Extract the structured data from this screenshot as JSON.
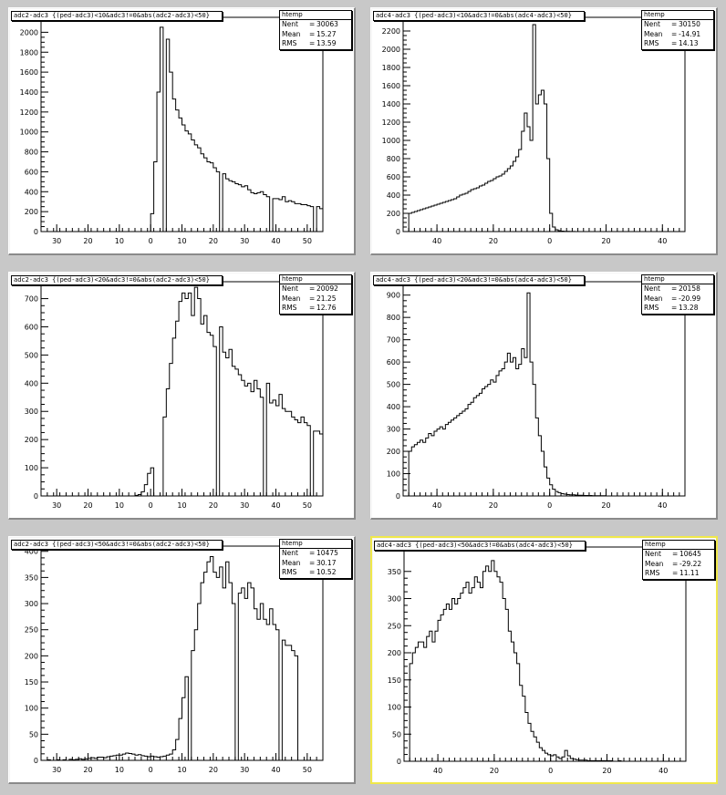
{
  "chart_data": [
    {
      "type": "bar",
      "title": "adc2-adc3 {(ped-adc3)<10&adc3!=0&abs(adc2-adc3)<50}",
      "stats": {
        "header": "htemp",
        "nent": "30063",
        "mean": "15.27",
        "rms": "13.59"
      },
      "xticks": [
        "30",
        "20",
        "10",
        "0",
        "10",
        "20",
        "30",
        "40",
        "50"
      ],
      "xrange": [
        -35,
        55
      ],
      "xtick_values": [
        -30,
        -20,
        -10,
        0,
        10,
        20,
        30,
        40,
        50
      ],
      "yticks": [
        0,
        200,
        400,
        600,
        800,
        1000,
        1200,
        1400,
        1600,
        1800,
        2000
      ],
      "ylim": [
        0,
        2150
      ],
      "bin_start": -50,
      "bin_width": 1,
      "values": [
        0,
        0,
        0,
        0,
        0,
        0,
        0,
        0,
        0,
        0,
        0,
        0,
        0,
        0,
        0,
        0,
        0,
        0,
        0,
        0,
        0,
        0,
        0,
        0,
        0,
        0,
        0,
        0,
        0,
        0,
        0,
        0,
        0,
        0,
        0,
        0,
        0,
        0,
        0,
        0,
        0,
        0,
        0,
        0,
        0,
        0,
        0,
        0,
        0,
        0,
        180,
        700,
        1400,
        2050,
        0,
        1930,
        1600,
        1330,
        1220,
        1140,
        1070,
        1010,
        980,
        920,
        870,
        840,
        780,
        740,
        700,
        690,
        640,
        600,
        0,
        580,
        530,
        510,
        500,
        480,
        470,
        450,
        460,
        420,
        390,
        380,
        390,
        400,
        370,
        350,
        0,
        330,
        330,
        320,
        350,
        300,
        310,
        300,
        280,
        280,
        270,
        270,
        260,
        250,
        0,
        250,
        230,
        220,
        220,
        200,
        190
      ]
    },
    {
      "type": "bar",
      "title": "adc4-adc3 {(ped-adc3)<10&adc3!=0&abs(adc4-adc3)<50}",
      "stats": {
        "header": "htemp",
        "nent": "30150",
        "mean": "-14.91",
        "rms": "14.13"
      },
      "xticks": [
        "40",
        "20",
        "0",
        "20",
        "40"
      ],
      "xrange": [
        -52,
        48
      ],
      "xtick_values": [
        -40,
        -20,
        0,
        20,
        40
      ],
      "yticks": [
        0,
        200,
        400,
        600,
        800,
        1000,
        1200,
        1400,
        1600,
        1800,
        2000,
        2200
      ],
      "ylim": [
        0,
        2350
      ],
      "bin_start": -50,
      "bin_width": 1,
      "values": [
        200,
        210,
        220,
        230,
        240,
        250,
        260,
        270,
        280,
        290,
        300,
        310,
        320,
        330,
        340,
        350,
        360,
        380,
        400,
        410,
        420,
        440,
        460,
        470,
        480,
        500,
        510,
        530,
        550,
        560,
        580,
        600,
        610,
        630,
        660,
        690,
        720,
        770,
        820,
        900,
        1100,
        1300,
        1150,
        1000,
        2270,
        1400,
        1500,
        1550,
        1400,
        800,
        200,
        50,
        20,
        10,
        5,
        3,
        2,
        1,
        1,
        0,
        0,
        0,
        0,
        0,
        0,
        0,
        0,
        0,
        0,
        0,
        0,
        0,
        0,
        0,
        0,
        0,
        0,
        0,
        0,
        0,
        0,
        0,
        0,
        0,
        0,
        0,
        0,
        0,
        0,
        0,
        0,
        0,
        0,
        0,
        0,
        0,
        0,
        0,
        0,
        0
      ]
    },
    {
      "type": "bar",
      "title": "adc2-adc3 {(ped-adc3)<20&adc3!=0&abs(adc2-adc3)<50}",
      "stats": {
        "header": "htemp",
        "nent": "20092",
        "mean": "21.25",
        "rms": "12.76"
      },
      "xticks": [
        "30",
        "20",
        "10",
        "0",
        "10",
        "20",
        "30",
        "40",
        "50"
      ],
      "xrange": [
        -35,
        55
      ],
      "xtick_values": [
        -30,
        -20,
        -10,
        0,
        10,
        20,
        30,
        40,
        50
      ],
      "yticks": [
        0,
        100,
        200,
        300,
        400,
        500,
        600,
        700
      ],
      "ylim": [
        0,
        760
      ],
      "bin_start": -50,
      "bin_width": 1,
      "values": [
        0,
        0,
        0,
        0,
        0,
        0,
        0,
        0,
        0,
        0,
        0,
        0,
        0,
        0,
        0,
        0,
        0,
        0,
        0,
        0,
        0,
        0,
        0,
        0,
        0,
        0,
        0,
        0,
        0,
        0,
        0,
        0,
        0,
        0,
        0,
        0,
        0,
        0,
        0,
        0,
        0,
        0,
        0,
        0,
        0,
        2,
        5,
        15,
        40,
        80,
        100,
        0,
        0,
        0,
        280,
        380,
        470,
        560,
        620,
        690,
        720,
        700,
        720,
        640,
        740,
        700,
        610,
        640,
        580,
        570,
        530,
        0,
        600,
        510,
        490,
        520,
        460,
        450,
        430,
        410,
        390,
        400,
        370,
        410,
        380,
        350,
        0,
        400,
        330,
        340,
        320,
        360,
        310,
        300,
        300,
        280,
        270,
        260,
        280,
        260,
        250,
        0,
        230,
        230,
        220,
        220,
        210,
        200,
        0
      ]
    },
    {
      "type": "bar",
      "title": "adc4-adc3 {(ped-adc3)<20&adc3!=0&abs(adc4-adc3)<50}",
      "stats": {
        "header": "htemp",
        "nent": "20158",
        "mean": "-20.99",
        "rms": "13.28"
      },
      "xticks": [
        "40",
        "20",
        "0",
        "20",
        "40"
      ],
      "xrange": [
        -52,
        48
      ],
      "xtick_values": [
        -40,
        -20,
        0,
        20,
        40
      ],
      "yticks": [
        0,
        100,
        200,
        300,
        400,
        500,
        600,
        700,
        800,
        900
      ],
      "ylim": [
        0,
        960
      ],
      "bin_start": -50,
      "bin_width": 1,
      "values": [
        200,
        220,
        230,
        240,
        250,
        240,
        260,
        280,
        270,
        290,
        300,
        310,
        300,
        320,
        330,
        340,
        350,
        360,
        370,
        380,
        390,
        410,
        420,
        440,
        450,
        460,
        480,
        490,
        500,
        520,
        510,
        540,
        560,
        570,
        600,
        640,
        600,
        620,
        570,
        590,
        660,
        620,
        910,
        600,
        500,
        350,
        270,
        200,
        130,
        80,
        50,
        30,
        20,
        15,
        10,
        8,
        6,
        5,
        5,
        4,
        3,
        3,
        2,
        2,
        2,
        1,
        1,
        1,
        1,
        1,
        0,
        0,
        0,
        0,
        0,
        0,
        0,
        0,
        0,
        0,
        0,
        0,
        0,
        0,
        0,
        0,
        0,
        0,
        0,
        0,
        0,
        0,
        0,
        0,
        0,
        0,
        0,
        0,
        0,
        0
      ]
    },
    {
      "type": "bar",
      "title": "adc2-adc3 {(ped-adc3)<50&adc3!=0&abs(adc2-adc3)<50}",
      "stats": {
        "header": "htemp",
        "nent": "10475",
        "mean": "30.17",
        "rms": "10.52"
      },
      "xticks": [
        "30",
        "20",
        "10",
        "0",
        "10",
        "20",
        "30",
        "40",
        "50"
      ],
      "xrange": [
        -35,
        55
      ],
      "xtick_values": [
        -30,
        -20,
        -10,
        0,
        10,
        20,
        30,
        40,
        50
      ],
      "yticks": [
        0,
        50,
        100,
        150,
        200,
        250,
        300,
        350,
        400
      ],
      "ylim": [
        0,
        410
      ],
      "bin_start": -50,
      "bin_width": 1,
      "values": [
        0,
        0,
        0,
        0,
        0,
        0,
        0,
        0,
        0,
        0,
        0,
        0,
        0,
        0,
        0,
        0,
        0,
        1,
        0,
        0,
        1,
        0,
        1,
        0,
        2,
        1,
        2,
        3,
        2,
        3,
        4,
        5,
        4,
        6,
        6,
        5,
        7,
        8,
        9,
        10,
        10,
        12,
        14,
        13,
        12,
        10,
        11,
        9,
        8,
        7,
        8,
        7,
        6,
        7,
        8,
        10,
        12,
        20,
        40,
        80,
        120,
        160,
        0,
        210,
        250,
        300,
        340,
        360,
        380,
        390,
        360,
        350,
        370,
        330,
        380,
        340,
        300,
        0,
        320,
        330,
        310,
        340,
        330,
        290,
        270,
        300,
        270,
        260,
        290,
        260,
        250,
        0,
        230,
        220,
        220,
        210,
        200,
        0,
        0,
        0,
        0,
        0,
        0,
        0,
        0
      ]
    },
    {
      "type": "bar",
      "title": "adc4-adc3 {(ped-adc3)<50&adc3!=0&abs(adc4-adc3)<50}",
      "stats": {
        "header": "htemp",
        "nent": "10645",
        "mean": "-29.22",
        "rms": "11.11"
      },
      "xticks": [
        "40",
        "20",
        "0",
        "20",
        "40"
      ],
      "xrange": [
        -52,
        48
      ],
      "xtick_values": [
        -40,
        -20,
        0,
        20,
        40
      ],
      "yticks": [
        0,
        50,
        100,
        150,
        200,
        250,
        300,
        350
      ],
      "ylim": [
        0,
        395
      ],
      "bin_start": -50,
      "bin_width": 1,
      "values": [
        180,
        200,
        210,
        220,
        220,
        210,
        230,
        240,
        220,
        240,
        260,
        270,
        280,
        290,
        280,
        300,
        290,
        300,
        310,
        320,
        330,
        310,
        320,
        340,
        330,
        320,
        350,
        360,
        350,
        370,
        350,
        340,
        330,
        300,
        280,
        240,
        220,
        200,
        180,
        140,
        120,
        90,
        70,
        55,
        45,
        35,
        25,
        20,
        15,
        12,
        10,
        12,
        8,
        5,
        8,
        20,
        10,
        5,
        4,
        3,
        2,
        2,
        2,
        1,
        1,
        1,
        1,
        1,
        1,
        1,
        1,
        1,
        0,
        0,
        1,
        0,
        0,
        0,
        0,
        0,
        0,
        0,
        0,
        0,
        0,
        0,
        0,
        0,
        0,
        0,
        0,
        0,
        0,
        0,
        0,
        0,
        0,
        0,
        0,
        0
      ]
    }
  ]
}
